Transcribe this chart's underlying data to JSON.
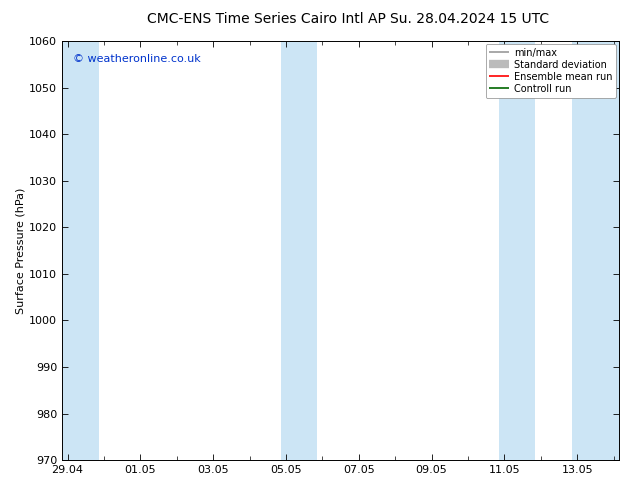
{
  "title_left": "CMC-ENS Time Series Cairo Intl AP",
  "title_right": "Su. 28.04.2024 15 UTC",
  "ylabel": "Surface Pressure (hPa)",
  "ylim": [
    970,
    1060
  ],
  "yticks": [
    970,
    980,
    990,
    1000,
    1010,
    1020,
    1030,
    1040,
    1050,
    1060
  ],
  "xtick_labels": [
    "29.04",
    "01.05",
    "03.05",
    "05.05",
    "07.05",
    "09.05",
    "11.05",
    "13.05"
  ],
  "xtick_positions": [
    0,
    2,
    4,
    6,
    8,
    10,
    12,
    14
  ],
  "x_min": -0.15,
  "x_max": 15.15,
  "watermark": "© weatheronline.co.uk",
  "watermark_color": "#0033cc",
  "background_color": "#ffffff",
  "plot_bg_color": "#ffffff",
  "shaded_bands": [
    {
      "x_start": -0.15,
      "x_end": 0.85
    },
    {
      "x_start": 5.85,
      "x_end": 6.85
    },
    {
      "x_start": 11.85,
      "x_end": 12.85
    },
    {
      "x_start": 13.85,
      "x_end": 15.15
    }
  ],
  "shaded_color": "#cce5f5",
  "legend_entries": [
    {
      "label": "min/max",
      "color": "#999999",
      "lw": 1.2
    },
    {
      "label": "Standard deviation",
      "color": "#bbbbbb",
      "lw": 6
    },
    {
      "label": "Ensemble mean run",
      "color": "#ff0000",
      "lw": 1.2
    },
    {
      "label": "Controll run",
      "color": "#006600",
      "lw": 1.2
    }
  ],
  "title_fontsize": 10,
  "tick_fontsize": 8,
  "ylabel_fontsize": 8,
  "watermark_fontsize": 8
}
